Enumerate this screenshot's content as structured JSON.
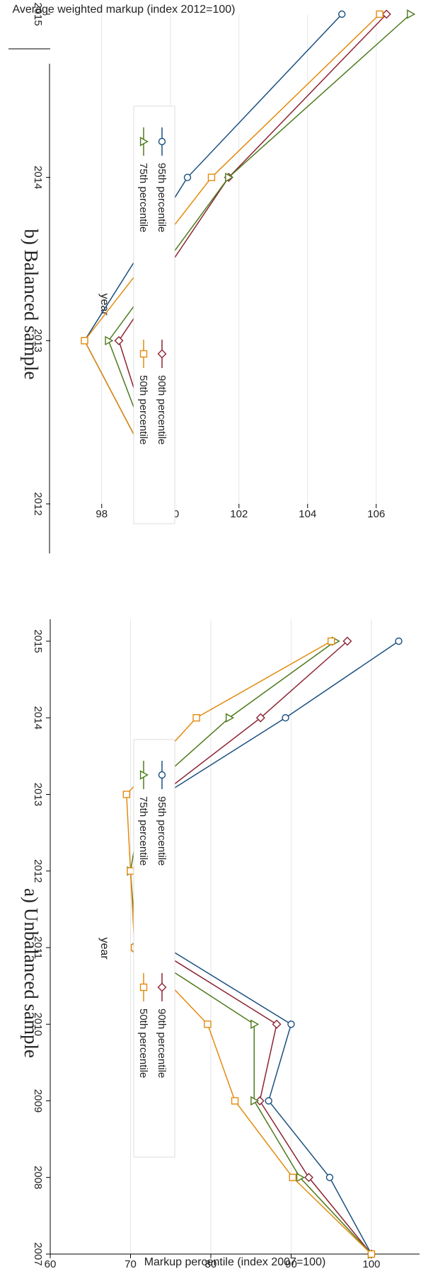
{
  "chart_data": [
    {
      "type": "line",
      "title": "a) Unbalanced sample",
      "xlabel": "year",
      "ylabel": "Markup percentile (index 2007=100)",
      "x": [
        2007,
        2008,
        2009,
        2010,
        2011,
        2012,
        2013,
        2014,
        2015
      ],
      "xticks": [
        "2007",
        "2008",
        "2009",
        "2010",
        "2011",
        "2012",
        "2013",
        "2014",
        "2015"
      ],
      "ylim": [
        60,
        100
      ],
      "yticks": [
        "60",
        "70",
        "80",
        "90",
        "100"
      ],
      "grid": true,
      "legend_position": "bottom",
      "series": [
        {
          "name": "95th percentile",
          "color": "#1a4f80",
          "marker": "circle",
          "values": [
            100,
            94.8,
            87.2,
            90.0,
            74.5,
            73.5,
            74.2,
            89.3,
            103.4
          ]
        },
        {
          "name": "90th percentile",
          "color": "#8b2332",
          "marker": "diamond",
          "values": [
            100,
            92.2,
            86.1,
            88.2,
            72.9,
            72.3,
            73.8,
            86.2,
            97.0
          ]
        },
        {
          "name": "75th percentile",
          "color": "#4d7a1c",
          "marker": "triangle",
          "values": [
            100,
            91.1,
            85.4,
            85.4,
            70.7,
            70.0,
            71.6,
            82.3,
            95.5
          ]
        },
        {
          "name": "50th percentile",
          "color": "#e38b0f",
          "marker": "square",
          "values": [
            100,
            90.2,
            83.0,
            79.6,
            70.5,
            70.0,
            69.5,
            78.2,
            95.0
          ]
        }
      ]
    },
    {
      "type": "line",
      "title": "b) Balanced sample",
      "xlabel": "year",
      "ylabel": "Average weighted markup (index 2012=100)",
      "x": [
        2012,
        2013,
        2014,
        2015
      ],
      "xticks": [
        "2012",
        "2013",
        "2014",
        "2015"
      ],
      "ylim": [
        96.5,
        107.2
      ],
      "yticks": [
        "98",
        "100",
        "102",
        "104",
        "106"
      ],
      "grid": true,
      "legend_position": "bottom",
      "series": [
        {
          "name": "95th percentile",
          "color": "#1a4f80",
          "marker": "circle",
          "values": [
            100,
            97.5,
            100.5,
            105.0
          ]
        },
        {
          "name": "90th percentile",
          "color": "#8b2332",
          "marker": "diamond",
          "values": [
            100,
            98.5,
            101.7,
            106.3
          ]
        },
        {
          "name": "75th percentile",
          "color": "#4d7a1c",
          "marker": "triangle",
          "values": [
            100,
            98.2,
            101.7,
            107.0
          ]
        },
        {
          "name": "50th percentile",
          "color": "#e38b0f",
          "marker": "square",
          "values": [
            100,
            97.5,
            101.2,
            106.1
          ]
        }
      ]
    }
  ]
}
